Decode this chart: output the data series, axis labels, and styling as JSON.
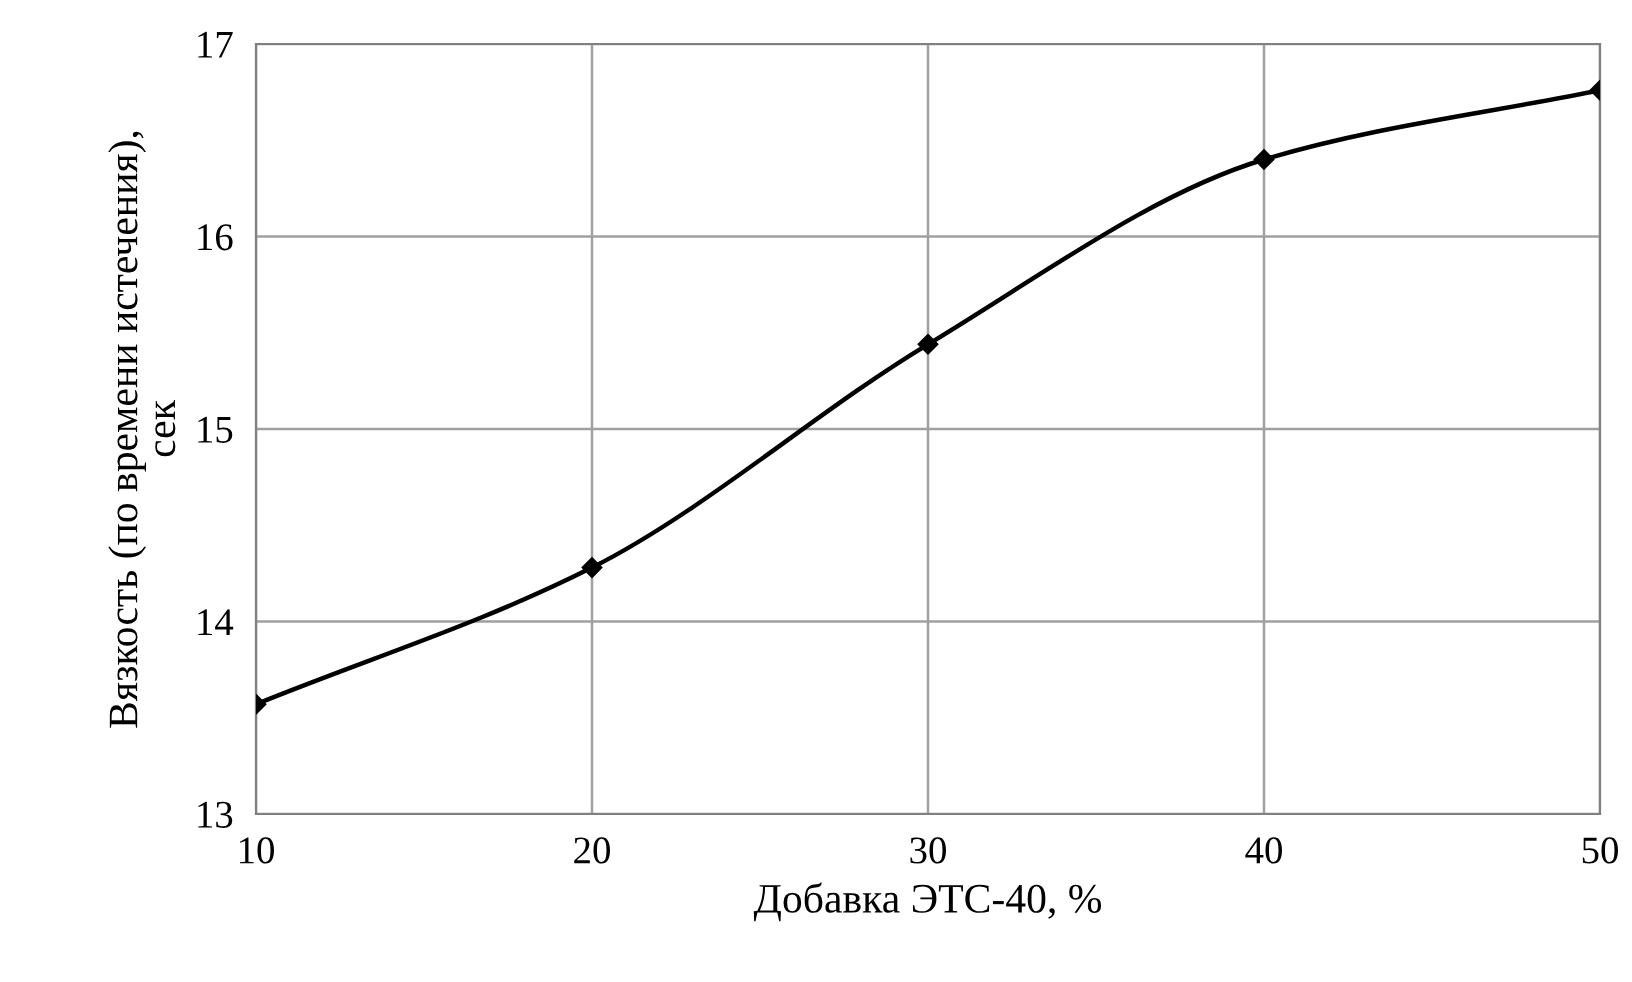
{
  "chart_data": {
    "type": "line",
    "xlabel": "Добавка ЭТС-40, %",
    "ylabel": "Вязкость (по времени истечения),\nсек",
    "x": [
      10,
      20,
      30,
      40,
      50
    ],
    "series": [
      {
        "color": "#000000",
        "values": [
          13.57,
          14.28,
          15.44,
          16.4,
          16.76
        ]
      }
    ],
    "xlim": [
      10,
      50
    ],
    "xticks": [
      10,
      20,
      30,
      40,
      50
    ],
    "ylim": [
      13,
      17
    ],
    "yticks": [
      13,
      14,
      15,
      16,
      17
    ],
    "grid": true,
    "marker": "diamond",
    "line_style": "solid",
    "legend": false
  }
}
